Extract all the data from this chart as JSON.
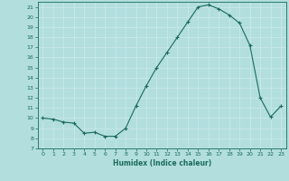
{
  "xlabel": "Humidex (Indice chaleur)",
  "background_color": "#b2dede",
  "grid_color": "#c8e8e8",
  "line_color": "#1a6b5a",
  "marker_color": "#1a6b5a",
  "xlim": [
    -0.5,
    23.5
  ],
  "ylim": [
    7,
    21.5
  ],
  "yticks": [
    7,
    8,
    9,
    10,
    11,
    12,
    13,
    14,
    15,
    16,
    17,
    18,
    19,
    20,
    21
  ],
  "xticks": [
    0,
    1,
    2,
    3,
    4,
    5,
    6,
    7,
    8,
    9,
    10,
    11,
    12,
    13,
    14,
    15,
    16,
    17,
    18,
    19,
    20,
    21,
    22,
    23
  ],
  "hours": [
    0,
    1,
    2,
    3,
    4,
    5,
    6,
    7,
    8,
    9,
    10,
    11,
    12,
    13,
    14,
    15,
    16,
    17,
    18,
    19,
    20,
    21,
    22,
    23
  ],
  "values": [
    10.0,
    9.9,
    9.6,
    9.5,
    8.5,
    8.6,
    8.2,
    8.2,
    9.0,
    11.2,
    13.2,
    15.0,
    16.5,
    18.0,
    19.5,
    21.0,
    21.2,
    20.8,
    20.2,
    19.4,
    17.2,
    12.0,
    10.1,
    11.2
  ]
}
